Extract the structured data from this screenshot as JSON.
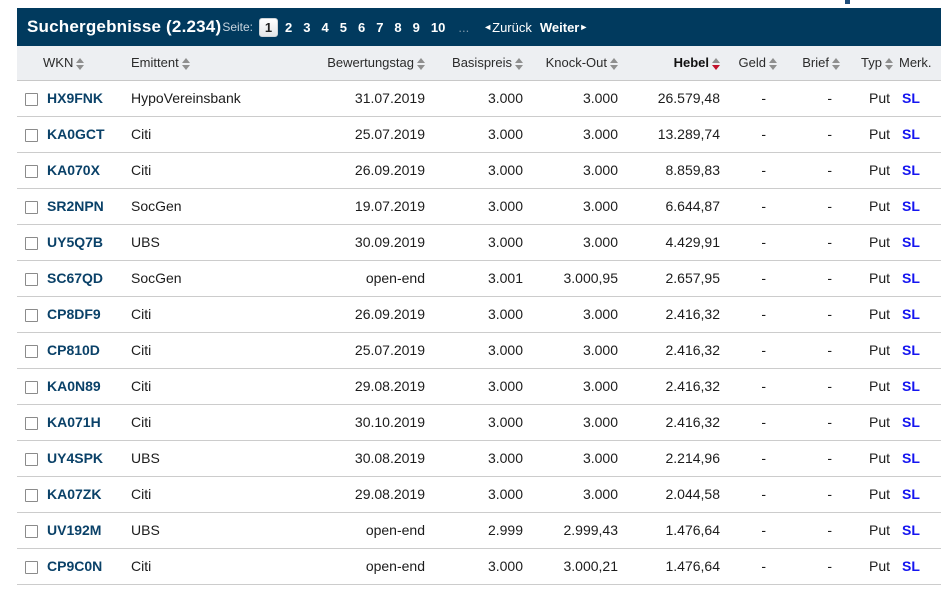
{
  "header": {
    "title": "Suchergebnisse (2.234)",
    "page_label": "Seite:",
    "current_page": "1",
    "pages": [
      "2",
      "3",
      "4",
      "5",
      "6",
      "7",
      "8",
      "9",
      "10"
    ],
    "ellipsis": "...",
    "back_arrow": "◄",
    "back_label": "Zurück",
    "next_label": "Weiter",
    "next_arrow": "►"
  },
  "colors": {
    "titlebar_bg": "#013a5e",
    "header_row_bg": "#edeff2",
    "wkn_link": "#0a4168",
    "merk_link": "#1515f0",
    "sort_active": "#c2112b"
  },
  "table": {
    "columns": [
      {
        "key": "wkn",
        "label": "WKN",
        "sortable": true,
        "align": "left"
      },
      {
        "key": "emittent",
        "label": "Emittent",
        "sortable": true,
        "align": "left"
      },
      {
        "key": "bewertungstag",
        "label": "Bewertungstag",
        "sortable": true,
        "align": "right"
      },
      {
        "key": "basispreis",
        "label": "Basispreis",
        "sortable": true,
        "align": "right"
      },
      {
        "key": "knockout",
        "label": "Knock-Out",
        "sortable": true,
        "align": "right"
      },
      {
        "key": "hebel",
        "label": "Hebel",
        "sortable": true,
        "align": "right",
        "sorted": "desc",
        "bold": true
      },
      {
        "key": "geld",
        "label": "Geld",
        "sortable": true,
        "align": "right"
      },
      {
        "key": "brief",
        "label": "Brief",
        "sortable": true,
        "align": "right"
      },
      {
        "key": "typ",
        "label": "Typ",
        "sortable": true,
        "align": "right"
      },
      {
        "key": "merk",
        "label": "Merk.",
        "sortable": false,
        "align": "left"
      }
    ],
    "rows": [
      {
        "wkn": "HX9FNK",
        "emittent": "HypoVereinsbank",
        "bewertungstag": "31.07.2019",
        "basispreis": "3.000",
        "knockout": "3.000",
        "hebel": "26.579,48",
        "geld": "-",
        "brief": "-",
        "typ": "Put",
        "merk": "SL"
      },
      {
        "wkn": "KA0GCT",
        "emittent": "Citi",
        "bewertungstag": "25.07.2019",
        "basispreis": "3.000",
        "knockout": "3.000",
        "hebel": "13.289,74",
        "geld": "-",
        "brief": "-",
        "typ": "Put",
        "merk": "SL"
      },
      {
        "wkn": "KA070X",
        "emittent": "Citi",
        "bewertungstag": "26.09.2019",
        "basispreis": "3.000",
        "knockout": "3.000",
        "hebel": "8.859,83",
        "geld": "-",
        "brief": "-",
        "typ": "Put",
        "merk": "SL"
      },
      {
        "wkn": "SR2NPN",
        "emittent": "SocGen",
        "bewertungstag": "19.07.2019",
        "basispreis": "3.000",
        "knockout": "3.000",
        "hebel": "6.644,87",
        "geld": "-",
        "brief": "-",
        "typ": "Put",
        "merk": "SL"
      },
      {
        "wkn": "UY5Q7B",
        "emittent": "UBS",
        "bewertungstag": "30.09.2019",
        "basispreis": "3.000",
        "knockout": "3.000",
        "hebel": "4.429,91",
        "geld": "-",
        "brief": "-",
        "typ": "Put",
        "merk": "SL"
      },
      {
        "wkn": "SC67QD",
        "emittent": "SocGen",
        "bewertungstag": "open-end",
        "basispreis": "3.001",
        "knockout": "3.000,95",
        "hebel": "2.657,95",
        "geld": "-",
        "brief": "-",
        "typ": "Put",
        "merk": "SL"
      },
      {
        "wkn": "CP8DF9",
        "emittent": "Citi",
        "bewertungstag": "26.09.2019",
        "basispreis": "3.000",
        "knockout": "3.000",
        "hebel": "2.416,32",
        "geld": "-",
        "brief": "-",
        "typ": "Put",
        "merk": "SL"
      },
      {
        "wkn": "CP810D",
        "emittent": "Citi",
        "bewertungstag": "25.07.2019",
        "basispreis": "3.000",
        "knockout": "3.000",
        "hebel": "2.416,32",
        "geld": "-",
        "brief": "-",
        "typ": "Put",
        "merk": "SL"
      },
      {
        "wkn": "KA0N89",
        "emittent": "Citi",
        "bewertungstag": "29.08.2019",
        "basispreis": "3.000",
        "knockout": "3.000",
        "hebel": "2.416,32",
        "geld": "-",
        "brief": "-",
        "typ": "Put",
        "merk": "SL"
      },
      {
        "wkn": "KA071H",
        "emittent": "Citi",
        "bewertungstag": "30.10.2019",
        "basispreis": "3.000",
        "knockout": "3.000",
        "hebel": "2.416,32",
        "geld": "-",
        "brief": "-",
        "typ": "Put",
        "merk": "SL"
      },
      {
        "wkn": "UY4SPK",
        "emittent": "UBS",
        "bewertungstag": "30.08.2019",
        "basispreis": "3.000",
        "knockout": "3.000",
        "hebel": "2.214,96",
        "geld": "-",
        "brief": "-",
        "typ": "Put",
        "merk": "SL"
      },
      {
        "wkn": "KA07ZK",
        "emittent": "Citi",
        "bewertungstag": "29.08.2019",
        "basispreis": "3.000",
        "knockout": "3.000",
        "hebel": "2.044,58",
        "geld": "-",
        "brief": "-",
        "typ": "Put",
        "merk": "SL"
      },
      {
        "wkn": "UV192M",
        "emittent": "UBS",
        "bewertungstag": "open-end",
        "basispreis": "2.999",
        "knockout": "2.999,43",
        "hebel": "1.476,64",
        "geld": "-",
        "brief": "-",
        "typ": "Put",
        "merk": "SL"
      },
      {
        "wkn": "CP9C0N",
        "emittent": "Citi",
        "bewertungstag": "open-end",
        "basispreis": "3.000",
        "knockout": "3.000,21",
        "hebel": "1.476,64",
        "geld": "-",
        "brief": "-",
        "typ": "Put",
        "merk": "SL"
      }
    ]
  }
}
